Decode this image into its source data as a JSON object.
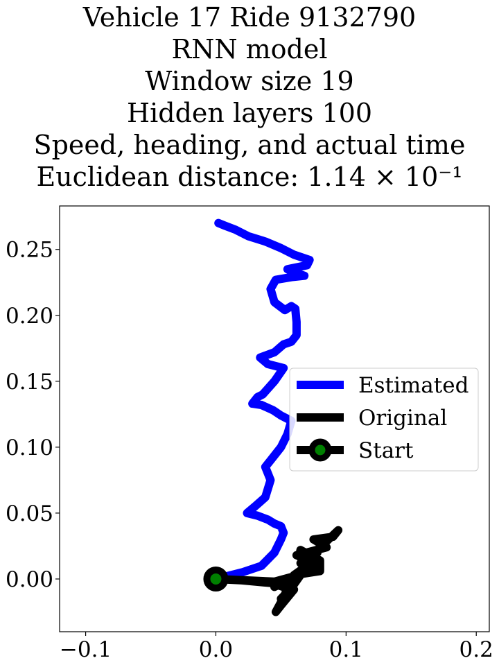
{
  "chart_data": {
    "type": "line",
    "title_lines": [
      "Vehicle 17 Ride 9132790",
      "RNN model",
      "Window size 19",
      "Hidden layers 100",
      "Speed, heading, and actual time",
      "Euclidean distance: 1.14 × 10⁻¹"
    ],
    "xlabel": "",
    "ylabel": "",
    "xlim": [
      -0.12,
      0.21
    ],
    "ylim": [
      -0.04,
      0.283
    ],
    "xticks": [
      -0.1,
      0.0,
      0.1,
      0.2
    ],
    "xtick_labels": [
      "−0.1",
      "0.0",
      "0.1",
      "0.2"
    ],
    "yticks": [
      0.0,
      0.05,
      0.1,
      0.15,
      0.2,
      0.25
    ],
    "ytick_labels": [
      "0.00",
      "0.05",
      "0.10",
      "0.15",
      "0.20",
      "0.25"
    ],
    "grid": false,
    "legend_position": "center-right",
    "series": [
      {
        "name": "Estimated",
        "color": "#0000ff",
        "points": [
          [
            0.0,
            0.0
          ],
          [
            0.02,
            0.005
          ],
          [
            0.035,
            0.01
          ],
          [
            0.045,
            0.02
          ],
          [
            0.05,
            0.03
          ],
          [
            0.052,
            0.035
          ],
          [
            0.05,
            0.04
          ],
          [
            0.045,
            0.042
          ],
          [
            0.04,
            0.045
          ],
          [
            0.032,
            0.048
          ],
          [
            0.024,
            0.05
          ],
          [
            0.03,
            0.055
          ],
          [
            0.038,
            0.062
          ],
          [
            0.042,
            0.075
          ],
          [
            0.038,
            0.085
          ],
          [
            0.042,
            0.09
          ],
          [
            0.046,
            0.095
          ],
          [
            0.05,
            0.1
          ],
          [
            0.055,
            0.11
          ],
          [
            0.058,
            0.12
          ],
          [
            0.05,
            0.124
          ],
          [
            0.044,
            0.128
          ],
          [
            0.035,
            0.132
          ],
          [
            0.028,
            0.133
          ],
          [
            0.032,
            0.138
          ],
          [
            0.036,
            0.14
          ],
          [
            0.045,
            0.15
          ],
          [
            0.052,
            0.16
          ],
          [
            0.04,
            0.163
          ],
          [
            0.034,
            0.168
          ],
          [
            0.045,
            0.172
          ],
          [
            0.052,
            0.178
          ],
          [
            0.058,
            0.18
          ],
          [
            0.062,
            0.185
          ],
          [
            0.062,
            0.195
          ],
          [
            0.061,
            0.205
          ],
          [
            0.058,
            0.207
          ],
          [
            0.053,
            0.204
          ],
          [
            0.045,
            0.21
          ],
          [
            0.042,
            0.22
          ],
          [
            0.046,
            0.227
          ],
          [
            0.058,
            0.229
          ],
          [
            0.068,
            0.23
          ],
          [
            0.062,
            0.232
          ],
          [
            0.055,
            0.235
          ],
          [
            0.07,
            0.238
          ],
          [
            0.072,
            0.242
          ],
          [
            0.06,
            0.246
          ],
          [
            0.05,
            0.251
          ],
          [
            0.038,
            0.256
          ],
          [
            0.025,
            0.26
          ],
          [
            0.015,
            0.265
          ],
          [
            0.007,
            0.268
          ],
          [
            0.002,
            0.27
          ]
        ]
      },
      {
        "name": "Original",
        "color": "#000000",
        "points": [
          [
            0.0,
            0.0
          ],
          [
            0.045,
            -0.002
          ],
          [
            0.06,
            0.002
          ],
          [
            0.045,
            -0.006
          ],
          [
            0.07,
            0.006
          ],
          [
            0.08,
            0.012
          ],
          [
            0.062,
            0.018
          ],
          [
            0.085,
            0.024
          ],
          [
            0.075,
            0.03
          ],
          [
            0.09,
            0.032
          ],
          [
            0.094,
            0.037
          ],
          [
            0.078,
            0.022
          ],
          [
            0.065,
            0.012
          ],
          [
            0.078,
            0.02
          ],
          [
            0.064,
            0.017
          ],
          [
            0.065,
            0.022
          ],
          [
            0.08,
            0.014
          ],
          [
            0.08,
            0.006
          ],
          [
            0.06,
            0.003
          ],
          [
            0.07,
            0.01
          ],
          [
            0.06,
            -0.004
          ],
          [
            0.055,
            -0.01
          ],
          [
            0.05,
            -0.015
          ],
          [
            0.06,
            -0.008
          ],
          [
            0.05,
            -0.02
          ],
          [
            0.046,
            -0.025
          ],
          [
            0.052,
            -0.014
          ],
          [
            0.055,
            -0.007
          ],
          [
            0.042,
            -0.003
          ],
          [
            0.02,
            -0.001
          ],
          [
            0.0,
            0.0
          ]
        ]
      }
    ],
    "start_marker": {
      "name": "Start",
      "point": [
        0.0,
        0.0
      ],
      "edge_color": "#000000",
      "face_color": "#008000"
    }
  }
}
